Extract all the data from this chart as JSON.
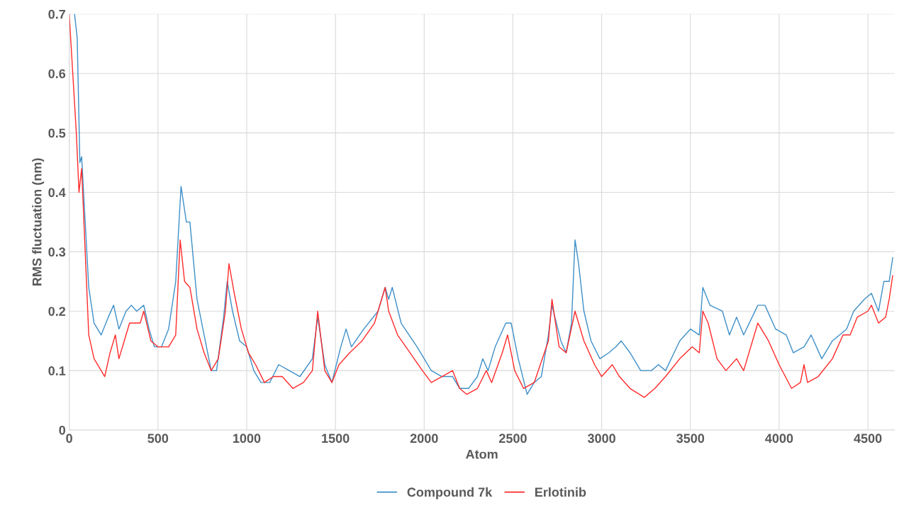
{
  "chart_data": {
    "type": "line",
    "xlabel": "Atom",
    "ylabel": "RMS fluctuation (nm)",
    "xlim": [
      0,
      4650
    ],
    "xticks": [
      0,
      500,
      1000,
      1500,
      2000,
      2500,
      3000,
      3500,
      4000,
      4500
    ],
    "ylim": [
      0,
      0.7
    ],
    "yticks": [
      0,
      0.1,
      0.2,
      0.3,
      0.4,
      0.5,
      0.6,
      0.7
    ],
    "grid": true,
    "legend": "bottom",
    "line_style": "solid",
    "marker": "none",
    "series": [
      {
        "name": "Compound 7k",
        "color": "#3d8fc8",
        "x": [
          30,
          45,
          60,
          70,
          90,
          110,
          140,
          180,
          220,
          250,
          280,
          320,
          350,
          380,
          420,
          450,
          480,
          520,
          560,
          600,
          630,
          660,
          680,
          720,
          760,
          800,
          830,
          870,
          890,
          920,
          960,
          1000,
          1040,
          1080,
          1130,
          1180,
          1240,
          1300,
          1370,
          1400,
          1440,
          1480,
          1530,
          1560,
          1590,
          1660,
          1740,
          1780,
          1800,
          1820,
          1870,
          1960,
          2040,
          2100,
          2160,
          2200,
          2250,
          2300,
          2330,
          2360,
          2400,
          2460,
          2490,
          2530,
          2580,
          2620,
          2660,
          2700,
          2720,
          2770,
          2800,
          2830,
          2850,
          2870,
          2900,
          2940,
          2990,
          3040,
          3080,
          3110,
          3160,
          3220,
          3280,
          3320,
          3360,
          3440,
          3500,
          3550,
          3570,
          3610,
          3680,
          3720,
          3760,
          3800,
          3880,
          3920,
          3980,
          4040,
          4080,
          4140,
          4180,
          4240,
          4300,
          4380,
          4420,
          4480,
          4520,
          4560,
          4590,
          4620,
          4640
        ],
        "values": [
          0.7,
          0.66,
          0.45,
          0.46,
          0.35,
          0.24,
          0.18,
          0.16,
          0.19,
          0.21,
          0.17,
          0.2,
          0.21,
          0.2,
          0.21,
          0.17,
          0.14,
          0.14,
          0.17,
          0.25,
          0.41,
          0.35,
          0.35,
          0.22,
          0.16,
          0.1,
          0.1,
          0.19,
          0.25,
          0.2,
          0.15,
          0.14,
          0.1,
          0.08,
          0.08,
          0.11,
          0.1,
          0.09,
          0.12,
          0.19,
          0.11,
          0.08,
          0.14,
          0.17,
          0.14,
          0.17,
          0.2,
          0.24,
          0.22,
          0.24,
          0.18,
          0.14,
          0.1,
          0.09,
          0.09,
          0.07,
          0.07,
          0.09,
          0.12,
          0.1,
          0.14,
          0.18,
          0.18,
          0.12,
          0.06,
          0.08,
          0.09,
          0.16,
          0.21,
          0.15,
          0.13,
          0.18,
          0.32,
          0.28,
          0.2,
          0.15,
          0.12,
          0.13,
          0.14,
          0.15,
          0.13,
          0.1,
          0.1,
          0.11,
          0.1,
          0.15,
          0.17,
          0.16,
          0.24,
          0.21,
          0.2,
          0.16,
          0.19,
          0.16,
          0.21,
          0.21,
          0.17,
          0.16,
          0.13,
          0.14,
          0.16,
          0.12,
          0.15,
          0.17,
          0.2,
          0.22,
          0.23,
          0.2,
          0.25,
          0.25,
          0.29
        ]
      },
      {
        "name": "Erlotinib",
        "color": "#ff2a2a",
        "x": [
          0,
          20,
          40,
          55,
          70,
          90,
          110,
          140,
          180,
          200,
          230,
          260,
          280,
          310,
          340,
          370,
          400,
          420,
          460,
          500,
          560,
          600,
          625,
          650,
          680,
          720,
          760,
          800,
          840,
          880,
          900,
          930,
          970,
          1010,
          1050,
          1100,
          1150,
          1200,
          1260,
          1320,
          1370,
          1400,
          1440,
          1480,
          1520,
          1580,
          1650,
          1720,
          1780,
          1800,
          1850,
          1920,
          1990,
          2040,
          2100,
          2160,
          2200,
          2240,
          2300,
          2350,
          2380,
          2440,
          2470,
          2510,
          2560,
          2620,
          2700,
          2720,
          2760,
          2800,
          2850,
          2900,
          2960,
          3000,
          3060,
          3100,
          3160,
          3240,
          3300,
          3360,
          3440,
          3510,
          3550,
          3570,
          3600,
          3650,
          3700,
          3760,
          3800,
          3880,
          3940,
          4000,
          4070,
          4120,
          4140,
          4160,
          4220,
          4300,
          4360,
          4400,
          4440,
          4500,
          4520,
          4560,
          4600,
          4620,
          4640
        ],
        "values": [
          0.7,
          0.6,
          0.5,
          0.4,
          0.44,
          0.3,
          0.16,
          0.12,
          0.1,
          0.09,
          0.13,
          0.16,
          0.12,
          0.15,
          0.18,
          0.18,
          0.18,
          0.2,
          0.15,
          0.14,
          0.14,
          0.16,
          0.32,
          0.25,
          0.24,
          0.17,
          0.13,
          0.1,
          0.12,
          0.2,
          0.28,
          0.23,
          0.17,
          0.13,
          0.11,
          0.08,
          0.09,
          0.09,
          0.07,
          0.08,
          0.1,
          0.2,
          0.1,
          0.08,
          0.11,
          0.13,
          0.15,
          0.18,
          0.24,
          0.2,
          0.16,
          0.13,
          0.1,
          0.08,
          0.09,
          0.1,
          0.07,
          0.06,
          0.07,
          0.1,
          0.08,
          0.13,
          0.16,
          0.1,
          0.07,
          0.08,
          0.15,
          0.22,
          0.14,
          0.13,
          0.2,
          0.15,
          0.11,
          0.09,
          0.11,
          0.09,
          0.07,
          0.055,
          0.07,
          0.09,
          0.12,
          0.14,
          0.13,
          0.2,
          0.18,
          0.12,
          0.1,
          0.12,
          0.1,
          0.18,
          0.15,
          0.11,
          0.07,
          0.08,
          0.11,
          0.08,
          0.09,
          0.12,
          0.16,
          0.16,
          0.19,
          0.2,
          0.21,
          0.18,
          0.19,
          0.22,
          0.26
        ]
      }
    ]
  }
}
